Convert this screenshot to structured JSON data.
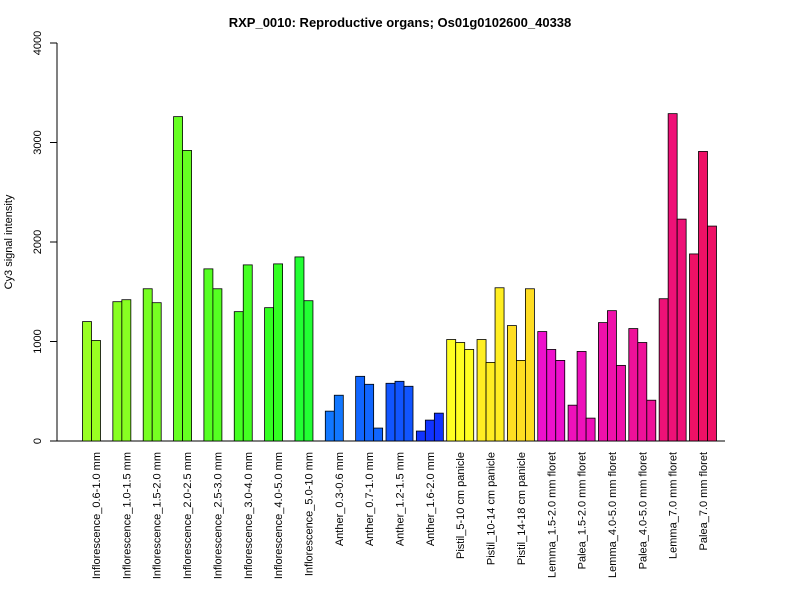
{
  "chart_data": {
    "type": "bar",
    "title": "RXP_0010: Reproductive organs; Os01g0102600_40338",
    "xlabel": "",
    "ylabel": "Cy3 signal intensity",
    "ylim": [
      0,
      4000
    ],
    "yticks": [
      "0",
      "1000",
      "2000",
      "3000",
      "4000"
    ],
    "grid": false,
    "groups": [
      {
        "label": "Inflorescence_0.6-1.0 mm",
        "color": "#99ff22",
        "values": [
          1200,
          1010
        ]
      },
      {
        "label": "Inflorescence_1.0-1.5 mm",
        "color": "#88ff22",
        "values": [
          1400,
          1420
        ]
      },
      {
        "label": "Inflorescence_1.5-2.0 mm",
        "color": "#77ff22",
        "values": [
          1530,
          1390
        ]
      },
      {
        "label": "Inflorescence_2.0-2.5 mm",
        "color": "#66ff22",
        "values": [
          3260,
          2920
        ]
      },
      {
        "label": "Inflorescence_2.5-3.0 mm",
        "color": "#55ff22",
        "values": [
          1730,
          1530
        ]
      },
      {
        "label": "Inflorescence_3.0-4.0 mm",
        "color": "#44ff22",
        "values": [
          1300,
          1770
        ]
      },
      {
        "label": "Inflorescence_4.0-5.0 mm",
        "color": "#33ff22",
        "values": [
          1340,
          1780
        ]
      },
      {
        "label": "Inflorescence_5.0-10 mm",
        "color": "#22ff33",
        "values": [
          1850,
          1410
        ]
      },
      {
        "label": "Anther_0.3-0.6 mm",
        "color": "#1177ff",
        "values": [
          300,
          460
        ]
      },
      {
        "label": "Anther_0.7-1.0 mm",
        "color": "#1166ff",
        "values": [
          650,
          570,
          130
        ]
      },
      {
        "label": "Anther_1.2-1.5 mm",
        "color": "#1155ff",
        "values": [
          580,
          600,
          550
        ]
      },
      {
        "label": "Anther_1.6-2.0 mm",
        "color": "#1133ff",
        "values": [
          100,
          210,
          280
        ]
      },
      {
        "label": "Pistil_5-10 cm panicle",
        "color": "#ffff22",
        "values": [
          1020,
          990,
          920
        ]
      },
      {
        "label": "Pistil_10-14 cm panicle",
        "color": "#ffee22",
        "values": [
          1020,
          790,
          1540
        ]
      },
      {
        "label": "Pistil_14-18 cm panicle",
        "color": "#ffdd22",
        "values": [
          1160,
          810,
          1530
        ]
      },
      {
        "label": "Lemma_1.5-2.0 mm floret",
        "color": "#ee11cc",
        "values": [
          1100,
          920,
          810
        ]
      },
      {
        "label": "Palea_1.5-2.0 mm floret",
        "color": "#ee11bb",
        "values": [
          360,
          900,
          230
        ]
      },
      {
        "label": "Lemma_4.0-5.0 mm floret",
        "color": "#ee11aa",
        "values": [
          1190,
          1310,
          760
        ]
      },
      {
        "label": "Palea_4.0-5.0 mm floret",
        "color": "#ee1199",
        "values": [
          1130,
          990,
          410
        ]
      },
      {
        "label": "Lemma_7.0 mm floret",
        "color": "#ee1177",
        "values": [
          1430,
          3290,
          2230
        ]
      },
      {
        "label": "Palea_7.0 mm floret",
        "color": "#ee1166",
        "values": [
          1880,
          2910,
          2160
        ]
      }
    ]
  }
}
